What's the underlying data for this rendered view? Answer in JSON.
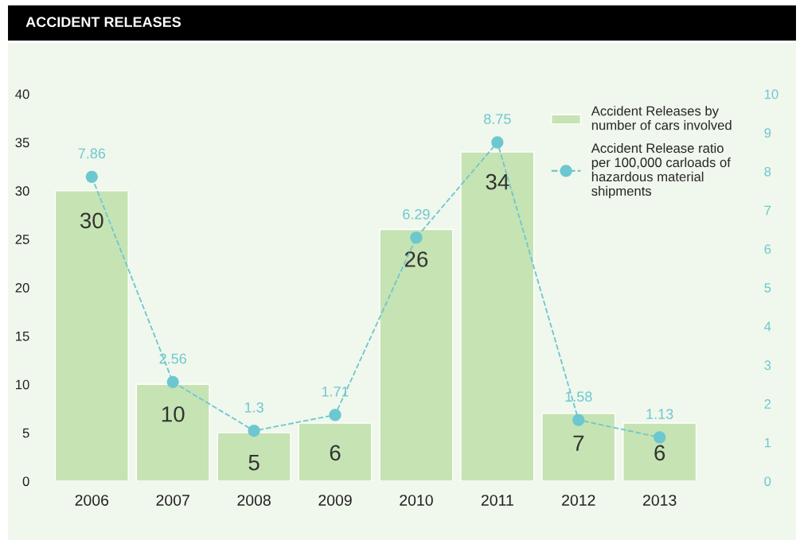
{
  "chart_data": {
    "type": "bar",
    "title": "ACCIDENT RELEASES",
    "categories": [
      "2006",
      "2007",
      "2008",
      "2009",
      "2010",
      "2011",
      "2012",
      "2013"
    ],
    "series": [
      {
        "name": "Accident Releases by number of cars involved",
        "color": "#c6e3b3",
        "values": [
          30,
          10,
          5,
          6,
          26,
          34,
          7,
          6
        ]
      },
      {
        "name": "Accident Release ratio per 100,000 carloads of hazardous material shipments",
        "type": "line",
        "axis": "y2",
        "color": "#6cc7d0",
        "marker": "circle",
        "line_style": "dashed",
        "values": [
          7.86,
          2.56,
          1.3,
          1.71,
          6.29,
          8.75,
          1.58,
          1.13
        ]
      }
    ],
    "ylim": [
      0,
      40
    ],
    "yticks": [
      0,
      5,
      10,
      15,
      20,
      25,
      30,
      35,
      40
    ],
    "y2lim": [
      0,
      10
    ],
    "y2ticks": [
      0,
      1,
      2,
      3,
      4,
      5,
      6,
      7,
      8,
      9,
      10
    ],
    "data_labels": true,
    "grid": false,
    "legend": "top right"
  }
}
